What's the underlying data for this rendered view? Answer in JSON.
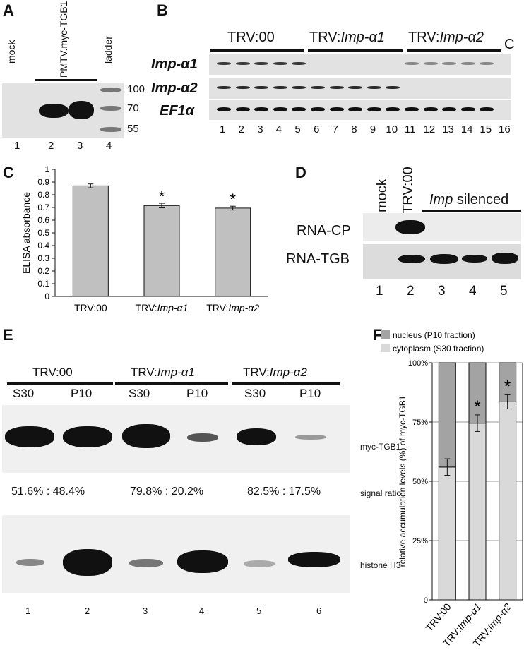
{
  "panels": {
    "A": {
      "label": "A",
      "lane_headers": {
        "mock": "mock",
        "construct": "PMTV.myc-TGB1",
        "ladder": "ladder"
      },
      "markers": [
        "100",
        "70",
        "55"
      ],
      "lanes": [
        "1",
        "2",
        "3",
        "4"
      ]
    },
    "B": {
      "label": "B",
      "groups": [
        {
          "prefix": "TRV:00",
          "gene": ""
        },
        {
          "prefix": "TRV:",
          "gene": "Imp-α1"
        },
        {
          "prefix": "TRV:",
          "gene": "Imp-α2"
        }
      ],
      "control_header": "C",
      "rows": [
        "Imp-α1",
        "Imp-α2",
        "EF1α"
      ],
      "lanes": [
        "1",
        "2",
        "3",
        "4",
        "5",
        "6",
        "7",
        "8",
        "9",
        "10",
        "11",
        "12",
        "13",
        "14",
        "15",
        "16"
      ]
    },
    "C": {
      "label": "C"
    },
    "D": {
      "label": "D",
      "headers": {
        "mock": "mock",
        "trv": "TRV:00",
        "imp": "Imp",
        "silenced": " silenced"
      },
      "rows": [
        "RNA-CP",
        "RNA-TGB"
      ],
      "lanes": [
        "1",
        "2",
        "3",
        "4",
        "5"
      ]
    },
    "E": {
      "label": "E",
      "groups": [
        {
          "prefix": "TRV:00",
          "gene": ""
        },
        {
          "prefix": "TRV:",
          "gene": "Imp-α1"
        },
        {
          "prefix": "TRV:",
          "gene": "Imp-α2"
        }
      ],
      "fractions": [
        "S30",
        "P10",
        "S30",
        "P10",
        "S30",
        "P10"
      ],
      "blot1_label": "myc-TGB1",
      "ratios": [
        "51.6% : 48.4%",
        "79.8% : 20.2%",
        "82.5% : 17.5%"
      ],
      "ratio_label": "signal ratio",
      "blot2_label": "histone H3",
      "lanes": [
        "1",
        "2",
        "3",
        "4",
        "5",
        "6"
      ]
    },
    "F": {
      "label": "F"
    }
  },
  "chart_data": [
    {
      "panel": "C",
      "type": "bar",
      "categories": [
        {
          "prefix": "TRV:00",
          "gene": ""
        },
        {
          "prefix": "TRV:",
          "gene": "Imp-α1"
        },
        {
          "prefix": "TRV:",
          "gene": "Imp-α2"
        }
      ],
      "values": [
        0.87,
        0.715,
        0.695
      ],
      "errors": [
        0.015,
        0.018,
        0.015
      ],
      "significance": [
        "",
        "*",
        "*"
      ],
      "ylabel": "ELISA absorbance",
      "ylim": [
        0,
        1
      ],
      "yticks": [
        "0",
        "0.1",
        "0.2",
        "0.3",
        "0.4",
        "0.5",
        "0.6",
        "0.7",
        "0.8",
        "0.9",
        "1"
      ],
      "bar_color": "#c0c0c0",
      "grid": false
    },
    {
      "panel": "F",
      "type": "bar",
      "stacked": true,
      "categories": [
        {
          "prefix": "TRV:00",
          "gene": ""
        },
        {
          "prefix": "TRV:",
          "gene": "Imp-α1"
        },
        {
          "prefix": "TRV:",
          "gene": "Imp-α2"
        }
      ],
      "series": [
        {
          "name": "cytoplasm (S30 fraction)",
          "values": [
            56,
            74.5,
            83.5
          ],
          "color": "#d9d9d9"
        },
        {
          "name": "nucleus (P10 fraction)",
          "values": [
            44,
            25.5,
            16.5
          ],
          "color": "#a3a3a3"
        }
      ],
      "errors": [
        3.5,
        3.5,
        3
      ],
      "significance": [
        "",
        "*",
        "*"
      ],
      "ylabel": "relative accumulation levels (%) of myc-TGB1",
      "ylim": [
        0,
        100
      ],
      "yticks": [
        "0",
        "25%",
        "50%",
        "75%",
        "100%"
      ],
      "legend": "top",
      "grid": true
    }
  ]
}
